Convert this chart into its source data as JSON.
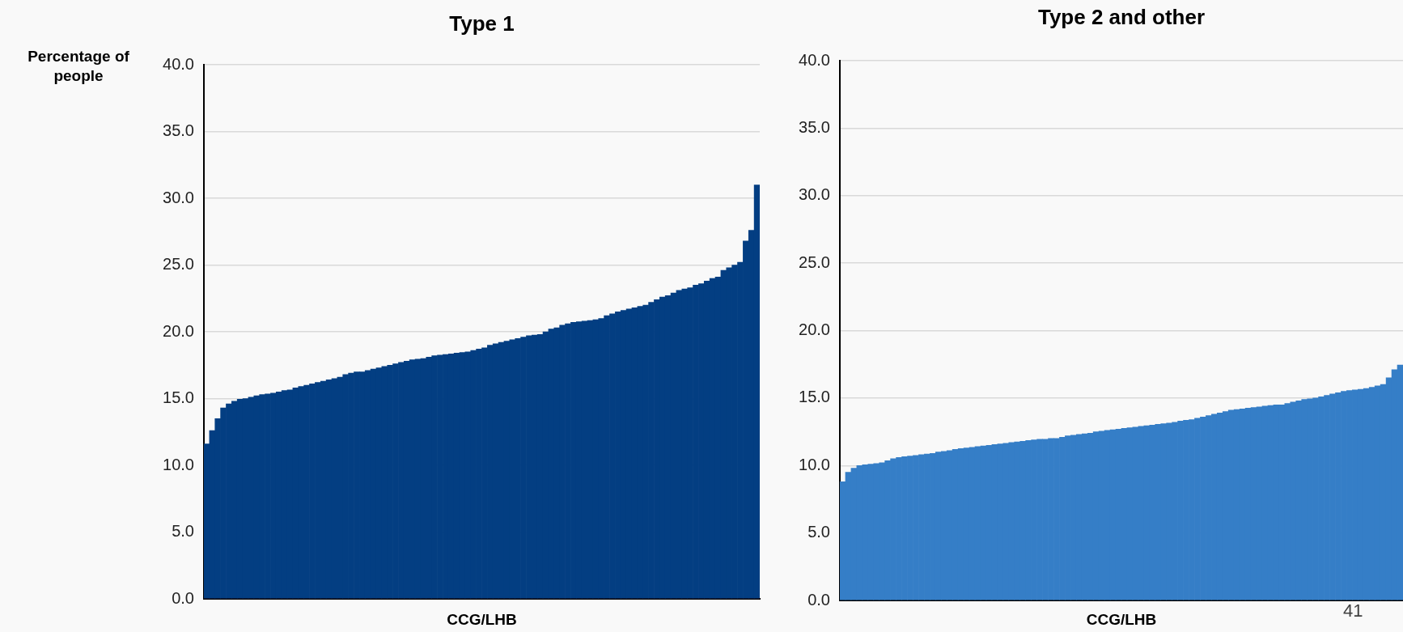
{
  "chart_data": [
    {
      "type": "bar",
      "title": "Type 1",
      "ylabel": "Percentage of people",
      "xlabel": "CCG/LHB",
      "color": "#033e82",
      "grid": "y",
      "ylim": [
        0,
        40
      ],
      "yticks": [
        {
          "value": 0,
          "label": "0.0"
        },
        {
          "value": 5,
          "label": "5.0"
        },
        {
          "value": 10,
          "label": "10.0"
        },
        {
          "value": 15,
          "label": "15.0"
        },
        {
          "value": 20,
          "label": "20.0"
        },
        {
          "value": 25,
          "label": "25.0"
        },
        {
          "value": 30,
          "label": "30.0"
        },
        {
          "value": 35,
          "label": "35.0"
        },
        {
          "value": 40,
          "label": "40.0"
        }
      ],
      "categories": [
        null,
        null,
        null,
        null,
        null,
        null,
        null,
        null,
        null,
        null,
        null,
        null,
        null,
        null,
        null,
        null,
        null,
        null,
        null,
        null,
        null,
        null,
        null,
        null,
        null,
        null,
        null,
        null,
        null,
        null,
        null,
        null,
        null,
        null,
        null,
        null,
        null,
        null,
        null,
        null,
        null,
        null,
        null,
        null,
        null,
        null,
        null,
        null,
        null,
        null,
        null,
        null,
        null,
        null,
        null,
        null,
        null,
        null,
        null,
        null,
        null,
        null,
        null,
        null,
        null,
        null,
        null,
        null,
        null,
        null,
        null,
        null,
        null,
        null,
        null,
        null,
        null,
        null,
        null,
        null,
        null,
        null,
        null,
        null,
        null,
        null,
        null,
        null,
        null,
        null,
        null,
        null,
        null,
        null,
        null,
        null,
        null,
        null,
        null,
        null
      ],
      "values": [
        11.6,
        12.6,
        13.5,
        14.3,
        14.6,
        14.8,
        14.95,
        15.0,
        15.1,
        15.2,
        15.3,
        15.35,
        15.4,
        15.5,
        15.6,
        15.65,
        15.8,
        15.9,
        16.0,
        16.1,
        16.2,
        16.3,
        16.4,
        16.5,
        16.6,
        16.8,
        16.9,
        17.0,
        17.0,
        17.1,
        17.2,
        17.3,
        17.4,
        17.5,
        17.6,
        17.7,
        17.8,
        17.9,
        17.95,
        18.0,
        18.1,
        18.2,
        18.25,
        18.3,
        18.35,
        18.4,
        18.45,
        18.5,
        18.6,
        18.7,
        18.8,
        19.0,
        19.1,
        19.2,
        19.3,
        19.4,
        19.5,
        19.6,
        19.7,
        19.75,
        19.8,
        20.0,
        20.2,
        20.3,
        20.5,
        20.6,
        20.7,
        20.75,
        20.8,
        20.85,
        20.9,
        21.0,
        21.2,
        21.35,
        21.5,
        21.6,
        21.7,
        21.8,
        21.9,
        22.0,
        22.2,
        22.4,
        22.6,
        22.7,
        22.9,
        23.1,
        23.2,
        23.3,
        23.5,
        23.6,
        23.8,
        24.0,
        24.1,
        24.6,
        24.8,
        25.0,
        25.2,
        26.8,
        27.6,
        31.0
      ]
    },
    {
      "type": "bar",
      "title": "Type 2 and other",
      "xlabel": "CCG/LHB",
      "color": "#357ec7",
      "grid": "y",
      "annotations": [
        "41"
      ],
      "ylim": [
        0,
        40
      ],
      "yticks": [
        {
          "value": 0,
          "label": "0.0"
        },
        {
          "value": 5,
          "label": "5.0"
        },
        {
          "value": 10,
          "label": "10.0"
        },
        {
          "value": 15,
          "label": "15.0"
        },
        {
          "value": 20,
          "label": "20.0"
        },
        {
          "value": 25,
          "label": "25.0"
        },
        {
          "value": 30,
          "label": "30.0"
        },
        {
          "value": 35,
          "label": "35.0"
        },
        {
          "value": 40,
          "label": "40.0"
        }
      ],
      "categories": [
        null,
        null,
        null,
        null,
        null,
        null,
        null,
        null,
        null,
        null,
        null,
        null,
        null,
        null,
        null,
        null,
        null,
        null,
        null,
        null,
        null,
        null,
        null,
        null,
        null,
        null,
        null,
        null,
        null,
        null,
        null,
        null,
        null,
        null,
        null,
        null,
        null,
        null,
        null,
        null,
        null,
        null,
        null,
        null,
        null,
        null,
        null,
        null,
        null,
        null,
        null,
        null,
        null,
        null,
        null,
        null,
        null,
        null,
        null,
        null,
        null,
        null,
        null,
        null,
        null,
        null,
        null,
        null,
        null,
        null,
        null,
        null,
        null,
        null,
        null,
        null,
        null,
        null,
        null,
        null,
        null,
        null,
        null,
        null,
        null,
        null,
        null,
        null,
        null,
        null,
        null,
        null,
        null,
        null,
        null,
        null,
        null,
        null,
        null,
        null
      ],
      "values": [
        8.8,
        9.5,
        9.8,
        10.0,
        10.05,
        10.1,
        10.15,
        10.2,
        10.35,
        10.5,
        10.6,
        10.65,
        10.7,
        10.75,
        10.8,
        10.85,
        10.9,
        11.0,
        11.05,
        11.1,
        11.2,
        11.25,
        11.3,
        11.35,
        11.4,
        11.45,
        11.5,
        11.55,
        11.6,
        11.65,
        11.7,
        11.75,
        11.8,
        11.85,
        11.9,
        11.95,
        11.95,
        12.0,
        12.0,
        12.1,
        12.2,
        12.25,
        12.3,
        12.35,
        12.4,
        12.5,
        12.55,
        12.6,
        12.65,
        12.7,
        12.75,
        12.8,
        12.85,
        12.9,
        12.95,
        13.0,
        13.05,
        13.1,
        13.15,
        13.2,
        13.3,
        13.35,
        13.4,
        13.5,
        13.6,
        13.7,
        13.8,
        13.9,
        14.0,
        14.1,
        14.15,
        14.2,
        14.25,
        14.3,
        14.35,
        14.4,
        14.45,
        14.5,
        14.5,
        14.6,
        14.7,
        14.8,
        14.9,
        14.95,
        15.0,
        15.1,
        15.2,
        15.3,
        15.4,
        15.5,
        15.55,
        15.6,
        15.65,
        15.7,
        15.8,
        15.9,
        16.0,
        16.5,
        17.1,
        17.45
      ]
    }
  ]
}
